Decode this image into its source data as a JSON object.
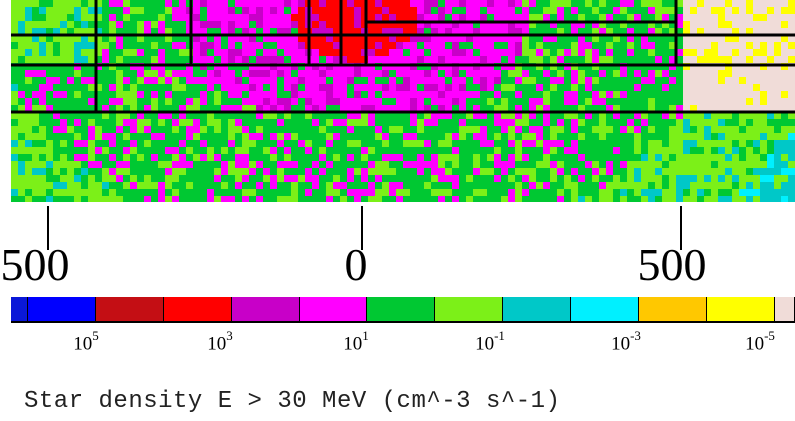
{
  "chart_data": {
    "type": "heatmap",
    "title": "",
    "x_tick_labels": [
      "500",
      "0",
      "500"
    ],
    "colorbar": {
      "levels": [
        {
          "color": "#0a18d8"
        },
        {
          "color": "#0000ff"
        },
        {
          "color": "#c40e14"
        },
        {
          "color": "#ff0000"
        },
        {
          "color": "#c800c8"
        },
        {
          "color": "#ff00ff"
        },
        {
          "color": "#00c832"
        },
        {
          "color": "#7cf018"
        },
        {
          "color": "#00c8c8"
        },
        {
          "color": "#00f0ff"
        },
        {
          "color": "#ffc800"
        },
        {
          "color": "#ffff00"
        },
        {
          "color": "#f0dcd8"
        }
      ],
      "tick_labels": [
        {
          "base": "10",
          "exp": "5"
        },
        {
          "base": "10",
          "exp": "3"
        },
        {
          "base": "10",
          "exp": "1"
        },
        {
          "base": "10",
          "exp": "-1"
        },
        {
          "base": "10",
          "exp": "-3"
        },
        {
          "base": "10",
          "exp": "-5"
        }
      ]
    },
    "caption": "Star density E > 30 MeV (cm^-3 s^-1)"
  }
}
